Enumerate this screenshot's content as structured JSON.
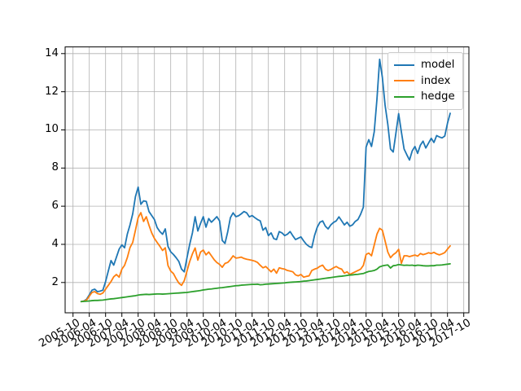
{
  "figure": {
    "background": "#ffffff"
  },
  "chart_data": {
    "type": "line",
    "title": "",
    "xlabel": "",
    "ylabel": "",
    "grid": true,
    "grid_color": "#b0b0b0",
    "spine_color": "#000000",
    "legend": {
      "position": "upper right",
      "border_color": "#cccccc"
    },
    "x_start_month": "2006-01",
    "x_interval": "monthly",
    "x_tick_labels": [
      "2005-10",
      "2006-04",
      "2006-10",
      "2007-04",
      "2007-10",
      "2008-04",
      "2008-10",
      "2009-04",
      "2009-10",
      "2010-04",
      "2010-10",
      "2011-04",
      "2011-10",
      "2012-04",
      "2012-10",
      "2013-04",
      "2013-10",
      "2014-04",
      "2014-10",
      "2015-04",
      "2015-10",
      "2016-04",
      "2016-10",
      "2017-04",
      "2017-10"
    ],
    "y_ticks": [
      2,
      4,
      6,
      8,
      10,
      12,
      14
    ],
    "ylim": [
      0.41,
      14.35
    ],
    "series": [
      {
        "name": "model",
        "color": "#1f77b4",
        "values": [
          1.0,
          1.03,
          1.12,
          1.35,
          1.6,
          1.65,
          1.52,
          1.55,
          1.6,
          2.05,
          2.6,
          3.15,
          2.91,
          3.33,
          3.75,
          3.97,
          3.82,
          4.53,
          5.02,
          5.6,
          6.5,
          7.0,
          6.1,
          6.28,
          6.25,
          5.72,
          5.51,
          5.3,
          4.88,
          4.67,
          4.53,
          4.81,
          3.89,
          3.61,
          3.47,
          3.3,
          3.1,
          2.7,
          2.56,
          3.3,
          4.0,
          4.6,
          5.45,
          4.7,
          5.1,
          5.45,
          4.9,
          5.35,
          5.16,
          5.3,
          5.45,
          5.23,
          4.2,
          4.05,
          4.65,
          5.4,
          5.65,
          5.45,
          5.5,
          5.6,
          5.72,
          5.65,
          5.44,
          5.51,
          5.4,
          5.3,
          5.23,
          4.74,
          4.88,
          4.46,
          4.6,
          4.3,
          4.25,
          4.67,
          4.6,
          4.46,
          4.53,
          4.67,
          4.45,
          4.25,
          4.32,
          4.39,
          4.18,
          4.0,
          3.89,
          3.83,
          4.46,
          4.9,
          5.16,
          5.23,
          4.95,
          4.81,
          5.02,
          5.15,
          5.23,
          5.44,
          5.23,
          5.02,
          5.16,
          4.95,
          5.02,
          5.2,
          5.3,
          5.58,
          5.95,
          9.1,
          9.49,
          9.13,
          9.9,
          11.6,
          13.7,
          12.75,
          11.3,
          10.3,
          9.0,
          8.84,
          9.84,
          10.85,
          9.9,
          9.0,
          8.7,
          8.42,
          8.9,
          9.13,
          8.77,
          9.2,
          9.41,
          9.05,
          9.3,
          9.56,
          9.34,
          9.7,
          9.63,
          9.58,
          9.68,
          10.35,
          10.87
        ]
      },
      {
        "name": "index",
        "color": "#ff7f0e",
        "values": [
          1.0,
          1.02,
          1.08,
          1.28,
          1.48,
          1.52,
          1.42,
          1.38,
          1.45,
          1.65,
          1.85,
          2.05,
          2.3,
          2.42,
          2.28,
          2.7,
          2.9,
          3.3,
          3.83,
          4.1,
          4.74,
          5.4,
          5.66,
          5.2,
          5.45,
          5.0,
          4.6,
          4.31,
          4.1,
          3.9,
          3.68,
          3.82,
          2.89,
          2.6,
          2.47,
          2.2,
          1.97,
          1.85,
          2.1,
          2.6,
          3.1,
          3.5,
          3.81,
          3.17,
          3.6,
          3.7,
          3.45,
          3.6,
          3.4,
          3.2,
          3.05,
          2.95,
          2.8,
          3.0,
          3.05,
          3.2,
          3.4,
          3.28,
          3.3,
          3.33,
          3.26,
          3.22,
          3.19,
          3.16,
          3.12,
          3.05,
          2.9,
          2.77,
          2.84,
          2.7,
          2.56,
          2.7,
          2.49,
          2.77,
          2.73,
          2.7,
          2.63,
          2.6,
          2.56,
          2.4,
          2.35,
          2.42,
          2.28,
          2.32,
          2.35,
          2.63,
          2.7,
          2.75,
          2.85,
          2.91,
          2.7,
          2.63,
          2.68,
          2.77,
          2.84,
          2.75,
          2.7,
          2.49,
          2.56,
          2.42,
          2.49,
          2.56,
          2.63,
          2.7,
          2.9,
          3.47,
          3.54,
          3.4,
          3.96,
          4.53,
          4.84,
          4.74,
          4.18,
          3.6,
          3.3,
          3.46,
          3.56,
          3.74,
          3.0,
          3.4,
          3.4,
          3.36,
          3.4,
          3.44,
          3.38,
          3.52,
          3.46,
          3.5,
          3.56,
          3.52,
          3.58,
          3.5,
          3.45,
          3.5,
          3.57,
          3.75,
          3.92
        ]
      },
      {
        "name": "hedge",
        "color": "#2ca02c",
        "values": [
          1.0,
          1.01,
          1.02,
          1.03,
          1.05,
          1.06,
          1.06,
          1.07,
          1.08,
          1.1,
          1.12,
          1.14,
          1.15,
          1.17,
          1.19,
          1.21,
          1.23,
          1.25,
          1.27,
          1.29,
          1.31,
          1.34,
          1.36,
          1.37,
          1.38,
          1.37,
          1.38,
          1.39,
          1.4,
          1.4,
          1.39,
          1.4,
          1.41,
          1.42,
          1.43,
          1.44,
          1.45,
          1.46,
          1.47,
          1.48,
          1.5,
          1.52,
          1.54,
          1.56,
          1.58,
          1.61,
          1.63,
          1.65,
          1.66,
          1.68,
          1.7,
          1.72,
          1.73,
          1.75,
          1.77,
          1.79,
          1.81,
          1.83,
          1.84,
          1.86,
          1.87,
          1.88,
          1.89,
          1.9,
          1.9,
          1.91,
          1.88,
          1.89,
          1.91,
          1.92,
          1.93,
          1.94,
          1.95,
          1.96,
          1.97,
          1.98,
          2.0,
          2.01,
          2.02,
          2.03,
          2.04,
          2.05,
          2.07,
          2.08,
          2.1,
          2.12,
          2.14,
          2.16,
          2.18,
          2.2,
          2.22,
          2.24,
          2.26,
          2.28,
          2.3,
          2.32,
          2.33,
          2.35,
          2.37,
          2.39,
          2.4,
          2.42,
          2.43,
          2.45,
          2.47,
          2.53,
          2.58,
          2.6,
          2.63,
          2.7,
          2.82,
          2.87,
          2.9,
          2.92,
          2.76,
          2.88,
          2.9,
          2.94,
          2.92,
          2.9,
          2.91,
          2.9,
          2.91,
          2.88,
          2.91,
          2.9,
          2.88,
          2.87,
          2.87,
          2.88,
          2.88,
          2.91,
          2.91,
          2.92,
          2.94,
          2.96,
          2.98
        ]
      }
    ]
  }
}
